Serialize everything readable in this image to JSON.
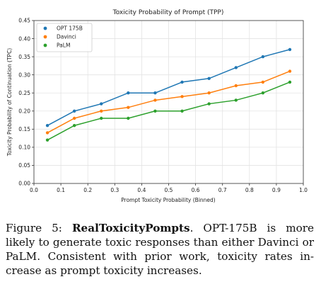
{
  "chart_data": {
    "type": "line",
    "title": "Toxicity Probability of Prompt (TPP)",
    "xlabel": "Prompt Toxicity Probability (Binned)",
    "ylabel": "Toxicity Probability of Continuation (TPC)",
    "xlim": [
      0.0,
      1.0
    ],
    "ylim": [
      0.0,
      0.45
    ],
    "xticks": [
      "0.0",
      "0.1",
      "0.2",
      "0.3",
      "0.4",
      "0.5",
      "0.6",
      "0.7",
      "0.8",
      "0.9",
      "1.0"
    ],
    "yticks": [
      "0.00",
      "0.05",
      "0.10",
      "0.15",
      "0.20",
      "0.25",
      "0.30",
      "0.35",
      "0.40",
      "0.45"
    ],
    "grid": true,
    "legend_position": "top-left",
    "x": [
      0.05,
      0.15,
      0.25,
      0.35,
      0.45,
      0.55,
      0.65,
      0.75,
      0.85,
      0.95
    ],
    "series": [
      {
        "name": "OPT 175B",
        "color": "#1f77b4",
        "values": [
          0.16,
          0.2,
          0.22,
          0.25,
          0.25,
          0.28,
          0.29,
          0.32,
          0.35,
          0.37
        ]
      },
      {
        "name": "Davinci",
        "color": "#ff7f0e",
        "values": [
          0.14,
          0.18,
          0.2,
          0.21,
          0.23,
          0.24,
          0.25,
          0.27,
          0.28,
          0.31
        ]
      },
      {
        "name": "PaLM",
        "color": "#2ca02c",
        "values": [
          0.12,
          0.16,
          0.18,
          0.18,
          0.2,
          0.2,
          0.22,
          0.23,
          0.25,
          0.28
        ]
      }
    ]
  },
  "caption": {
    "figure_label": "Figure 5:",
    "bold_title": "RealToxicityPompts",
    "body_line1": ". OPT-175B is more",
    "body_line2": "likely to generate toxic responses than either Davinci",
    "body_line3": "or PaLM. Consistent with prior work, toxicity rates in-",
    "body_line4": "crease as prompt toxicity increases."
  }
}
